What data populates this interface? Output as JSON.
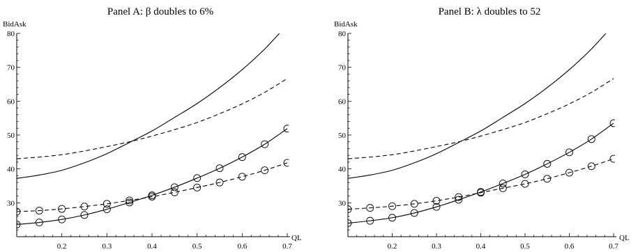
{
  "chart_data": [
    {
      "type": "line",
      "title": "Panel A: β doubles to 6%",
      "xlabel": "QL",
      "ylabel": "BidAsk",
      "xlim": [
        0.1,
        0.7
      ],
      "ylim": [
        20,
        80
      ],
      "xticks": [
        "0.2",
        "0.3",
        "0.4",
        "0.5",
        "0.6",
        "0.7"
      ],
      "yticks": [
        "30",
        "40",
        "50",
        "60",
        "70",
        "80"
      ],
      "grid": false,
      "series": [
        {
          "style": "solid",
          "marker": "none",
          "x": [
            0.1,
            0.15,
            0.2,
            0.25,
            0.3,
            0.35,
            0.4,
            0.45,
            0.5,
            0.55,
            0.6,
            0.65,
            0.7
          ],
          "y": [
            37.2,
            38.2,
            39.6,
            41.8,
            44.5,
            47.8,
            51.2,
            55.2,
            59.3,
            64.0,
            69.3,
            75.4,
            82.6
          ]
        },
        {
          "style": "dashed",
          "marker": "none",
          "x": [
            0.1,
            0.15,
            0.2,
            0.25,
            0.3,
            0.35,
            0.4,
            0.45,
            0.5,
            0.55,
            0.6,
            0.65,
            0.7
          ],
          "y": [
            43.0,
            43.5,
            44.2,
            45.3,
            46.6,
            48.0,
            49.7,
            51.6,
            53.7,
            56.3,
            59.2,
            62.6,
            66.7
          ]
        },
        {
          "style": "solid",
          "marker": "circle",
          "x": [
            0.1,
            0.15,
            0.2,
            0.25,
            0.3,
            0.35,
            0.4,
            0.45,
            0.5,
            0.55,
            0.6,
            0.65,
            0.7
          ],
          "y": [
            23.6,
            24.2,
            25.1,
            26.4,
            28.1,
            30.1,
            32.2,
            34.6,
            37.3,
            40.2,
            43.5,
            47.3,
            51.9
          ]
        },
        {
          "style": "dashed",
          "marker": "circle",
          "x": [
            0.1,
            0.15,
            0.2,
            0.25,
            0.3,
            0.35,
            0.4,
            0.45,
            0.5,
            0.55,
            0.6,
            0.65,
            0.7
          ],
          "y": [
            27.4,
            27.7,
            28.2,
            28.9,
            29.7,
            30.7,
            31.8,
            33.1,
            34.5,
            36.0,
            37.7,
            39.6,
            41.8
          ]
        }
      ]
    },
    {
      "type": "line",
      "title": "Panel B: λ doubles to 52",
      "xlabel": "QL",
      "ylabel": "BidAsk",
      "xlim": [
        0.1,
        0.7
      ],
      "ylim": [
        20,
        80
      ],
      "xticks": [
        "0.2",
        "0.3",
        "0.4",
        "0.5",
        "0.6",
        "0.7"
      ],
      "yticks": [
        "30",
        "40",
        "50",
        "60",
        "70",
        "80"
      ],
      "grid": false,
      "series": [
        {
          "style": "solid",
          "marker": "none",
          "x": [
            0.1,
            0.15,
            0.2,
            0.25,
            0.3,
            0.35,
            0.4,
            0.45,
            0.5,
            0.55,
            0.6,
            0.65,
            0.7
          ],
          "y": [
            37.2,
            38.2,
            39.6,
            41.8,
            44.5,
            47.8,
            51.2,
            55.2,
            59.3,
            64.0,
            69.3,
            75.4,
            82.6
          ]
        },
        {
          "style": "dashed",
          "marker": "none",
          "x": [
            0.1,
            0.15,
            0.2,
            0.25,
            0.3,
            0.35,
            0.4,
            0.45,
            0.5,
            0.55,
            0.6,
            0.65,
            0.7
          ],
          "y": [
            43.0,
            43.5,
            44.2,
            45.3,
            46.6,
            48.0,
            49.7,
            51.6,
            53.7,
            56.3,
            59.2,
            62.6,
            66.7
          ]
        },
        {
          "style": "solid",
          "marker": "circle",
          "x": [
            0.1,
            0.15,
            0.2,
            0.25,
            0.3,
            0.35,
            0.4,
            0.45,
            0.5,
            0.55,
            0.6,
            0.65,
            0.7
          ],
          "y": [
            24.0,
            24.7,
            25.6,
            27.0,
            28.8,
            30.9,
            33.2,
            35.7,
            38.4,
            41.5,
            44.9,
            48.8,
            53.5
          ]
        },
        {
          "style": "dashed",
          "marker": "circle",
          "x": [
            0.1,
            0.15,
            0.2,
            0.25,
            0.3,
            0.35,
            0.4,
            0.45,
            0.5,
            0.55,
            0.6,
            0.65,
            0.7
          ],
          "y": [
            28.1,
            28.5,
            29.0,
            29.7,
            30.6,
            31.7,
            33.0,
            34.3,
            35.6,
            37.1,
            38.9,
            40.8,
            43.0
          ]
        }
      ]
    }
  ]
}
